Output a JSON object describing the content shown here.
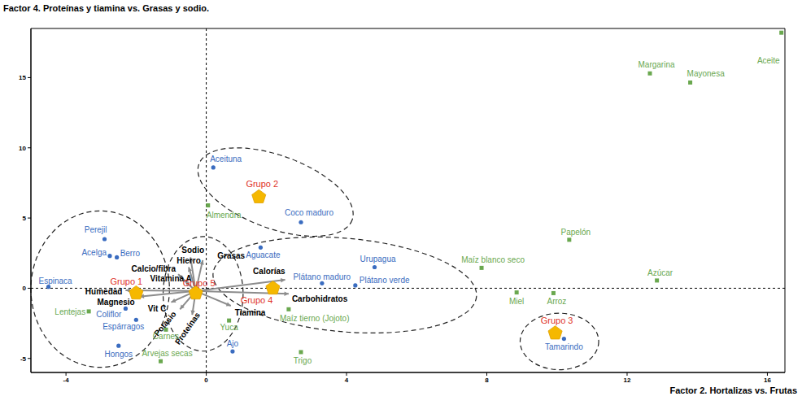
{
  "chart_data": {
    "type": "scatter",
    "title": "Factor 4. Proteínas y tiamina vs. Grasas y sodio.",
    "x_label": "Factor 2. Hortalizas vs. Frutas",
    "xlim": [
      -5,
      16.5
    ],
    "ylim": [
      -6,
      18.5
    ],
    "xticks": [
      -4,
      0,
      4,
      8,
      12,
      16
    ],
    "yticks": [
      -5,
      0,
      5,
      10,
      15
    ],
    "grid": false,
    "reference_lines": [
      {
        "x": 0
      },
      {
        "y": 0
      }
    ],
    "series": [
      {
        "color": "#3a6cc0",
        "marker": "circle",
        "points": [
          {
            "label": "Aceituna",
            "x": 0.2,
            "y": 8.6
          },
          {
            "label": "Coco maduro",
            "x": 2.7,
            "y": 4.7
          },
          {
            "label": "Perejil",
            "x": -2.9,
            "y": 3.5
          },
          {
            "label": "Acelga",
            "x": -2.75,
            "y": 2.3
          },
          {
            "label": "Berro",
            "x": -2.55,
            "y": 2.2
          },
          {
            "label": "Espinaca",
            "x": -4.5,
            "y": 0.1
          },
          {
            "label": "Aguacate",
            "x": 1.55,
            "y": 2.9
          },
          {
            "label": "Urupagua",
            "x": 4.8,
            "y": 1.5
          },
          {
            "label": "Plátano maduro",
            "x": 3.3,
            "y": 0.35
          },
          {
            "label": "Plátano verde",
            "x": 4.25,
            "y": 0.2
          },
          {
            "label": "Coliflor",
            "x": -2.3,
            "y": -1.45
          },
          {
            "label": "Espárragos",
            "x": -2.0,
            "y": -2.25
          },
          {
            "label": "Hongos",
            "x": -2.5,
            "y": -4.1
          },
          {
            "label": "Ajo",
            "x": 0.75,
            "y": -4.5
          },
          {
            "label": "Tamarindo",
            "x": 10.2,
            "y": -3.6
          }
        ]
      },
      {
        "color": "#6aa84f",
        "marker": "square",
        "points": [
          {
            "label": "Aceite",
            "x": 16.4,
            "y": 18.2
          },
          {
            "label": "Margarina",
            "x": 12.65,
            "y": 15.3
          },
          {
            "label": "Mayonesa",
            "x": 13.8,
            "y": 14.65
          },
          {
            "label": "Almendra",
            "x": 0.05,
            "y": 5.9
          },
          {
            "label": "Papelón",
            "x": 10.35,
            "y": 3.45
          },
          {
            "label": "Maíz blanco seco",
            "x": 7.85,
            "y": 1.45
          },
          {
            "label": "Azúcar",
            "x": 12.85,
            "y": 0.55
          },
          {
            "label": "Miel",
            "x": 8.85,
            "y": -0.3
          },
          {
            "label": "Arroz",
            "x": 9.9,
            "y": -0.35
          },
          {
            "label": "Maíz tierno (Jojoto)",
            "x": 2.35,
            "y": -1.5
          },
          {
            "label": "Lentejas",
            "x": -3.35,
            "y": -1.65
          },
          {
            "label": "Yuca",
            "x": 0.65,
            "y": -2.3
          },
          {
            "label": "Carnes",
            "x": -1.15,
            "y": -2.95
          },
          {
            "label": "Arvejas secas",
            "x": -1.3,
            "y": -5.2
          },
          {
            "label": "Trigo",
            "x": 2.7,
            "y": -4.55
          }
        ]
      }
    ],
    "groups": {
      "color": "#f5b800",
      "marker": "pentagon",
      "points": [
        {
          "label": "Grupo 1",
          "x": -2.0,
          "y": -0.35
        },
        {
          "label": "Grupo 2",
          "x": 1.5,
          "y": 6.5
        },
        {
          "label": "Grupo 3",
          "x": 9.95,
          "y": -3.2
        },
        {
          "label": "Grupo 4",
          "x": 1.9,
          "y": 0.0
        },
        {
          "label": "Grupo 5",
          "x": -0.3,
          "y": -0.35
        }
      ]
    },
    "vectors": {
      "color": "#8c8c8c",
      "origin": {
        "x": -0.3,
        "y": -0.2
      },
      "items": [
        {
          "label": "Sodio",
          "x": -0.45,
          "y": 2.2
        },
        {
          "label": "Hierro",
          "x": -0.5,
          "y": 1.5
        },
        {
          "label": "Calcio/fibra",
          "x": -0.8,
          "y": 1.0
        },
        {
          "label": "Vitamina A",
          "x": -0.6,
          "y": 0.5
        },
        {
          "label": "Grasas",
          "x": -0.1,
          "y": 2.0
        },
        {
          "label": "Calorías",
          "x": 2.25,
          "y": 0.6
        },
        {
          "label": "Carbohidratos",
          "x": 2.35,
          "y": -0.4
        },
        {
          "label": "Tiamina",
          "x": 0.7,
          "y": -1.25
        },
        {
          "label": "Humedad",
          "x": -2.3,
          "y": -0.15
        },
        {
          "label": "Magnesio",
          "x": -1.9,
          "y": -0.6
        },
        {
          "label": "Vit C",
          "x": -1.0,
          "y": -1.0
        },
        {
          "label": "Potasio",
          "x": -0.75,
          "y": -1.5
        },
        {
          "label": "Proteínas",
          "x": -0.4,
          "y": -1.9
        }
      ]
    },
    "clusters": {
      "line_style": "dashed",
      "items": [
        {
          "x": [
            -5.0,
            -1.05
          ],
          "y": [
            -5.63,
            5.51
          ]
        },
        {
          "x": [
            -0.35,
            4.3
          ],
          "y": [
            4.25,
            9.45
          ]
        },
        {
          "x": [
            8.95,
            11.19
          ],
          "y": [
            -5.8,
            -1.78
          ]
        },
        {
          "x": [
            0.18,
            7.72
          ],
          "y": [
            -3.1,
            3.56
          ]
        },
        {
          "x": [
            -1.23,
            1.05
          ],
          "y": [
            -4.48,
            3.68
          ]
        }
      ]
    }
  }
}
